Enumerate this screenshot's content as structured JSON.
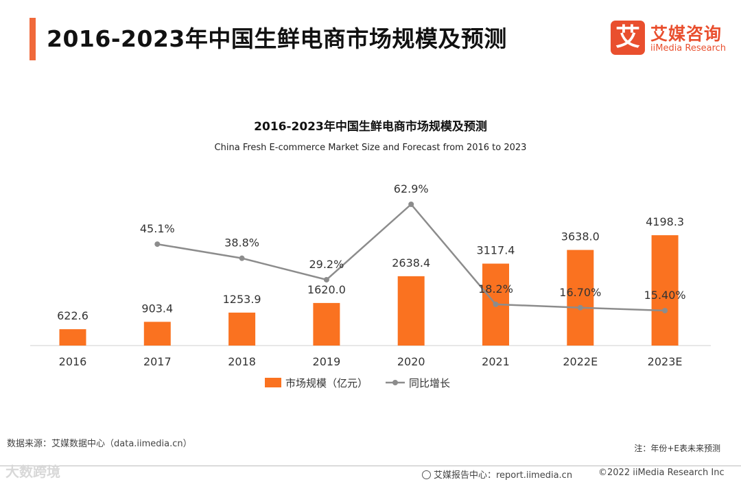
{
  "page": {
    "title": "2016-2023年中国生鲜电商市场规模及预测"
  },
  "logo": {
    "mark": "艾",
    "name_cn": "艾媒咨询",
    "name_en": "iiMedia Research"
  },
  "footer": {
    "source": "数据来源：艾媒数据中心（data.iimedia.cn）",
    "note": "注：年份+E表未来预测",
    "watermark": "大数跨境",
    "report": "艾媒报告中心：report.iimedia.cn",
    "copyright": "©2022  iiMedia Research  Inc"
  },
  "colors": {
    "accent": "#f0693a",
    "bar": "#fa7220",
    "line": "#8c8c8c"
  },
  "chart_data": {
    "type": "bar",
    "title": "2016-2023年中国生鲜电商市场规模及预测",
    "subtitle": "China Fresh E-commerce Market Size and Forecast from 2016 to 2023",
    "categories": [
      "2016",
      "2017",
      "2018",
      "2019",
      "2020",
      "2021",
      "2022E",
      "2023E"
    ],
    "series": [
      {
        "name": "市场规模（亿元）",
        "type": "bar",
        "values": [
          622.6,
          903.4,
          1253.9,
          1620.0,
          2638.4,
          3117.4,
          3638.0,
          4198.3
        ],
        "labels": [
          "622.6",
          "903.4",
          "1253.9",
          "1620.0",
          "2638.4",
          "3117.4",
          "3638.0",
          "4198.3"
        ]
      },
      {
        "name": "同比增长",
        "type": "line",
        "values": [
          null,
          45.1,
          38.8,
          29.2,
          62.9,
          18.2,
          16.7,
          15.4
        ],
        "labels": [
          "",
          "45.1%",
          "38.8%",
          "29.2%",
          "62.9%",
          "18.2%",
          "16.70%",
          "15.40%"
        ]
      }
    ],
    "ylim_bar": [
      0,
      4200
    ],
    "ylim_line": [
      0,
      100
    ],
    "legend": "bottom-center",
    "grid": false
  }
}
